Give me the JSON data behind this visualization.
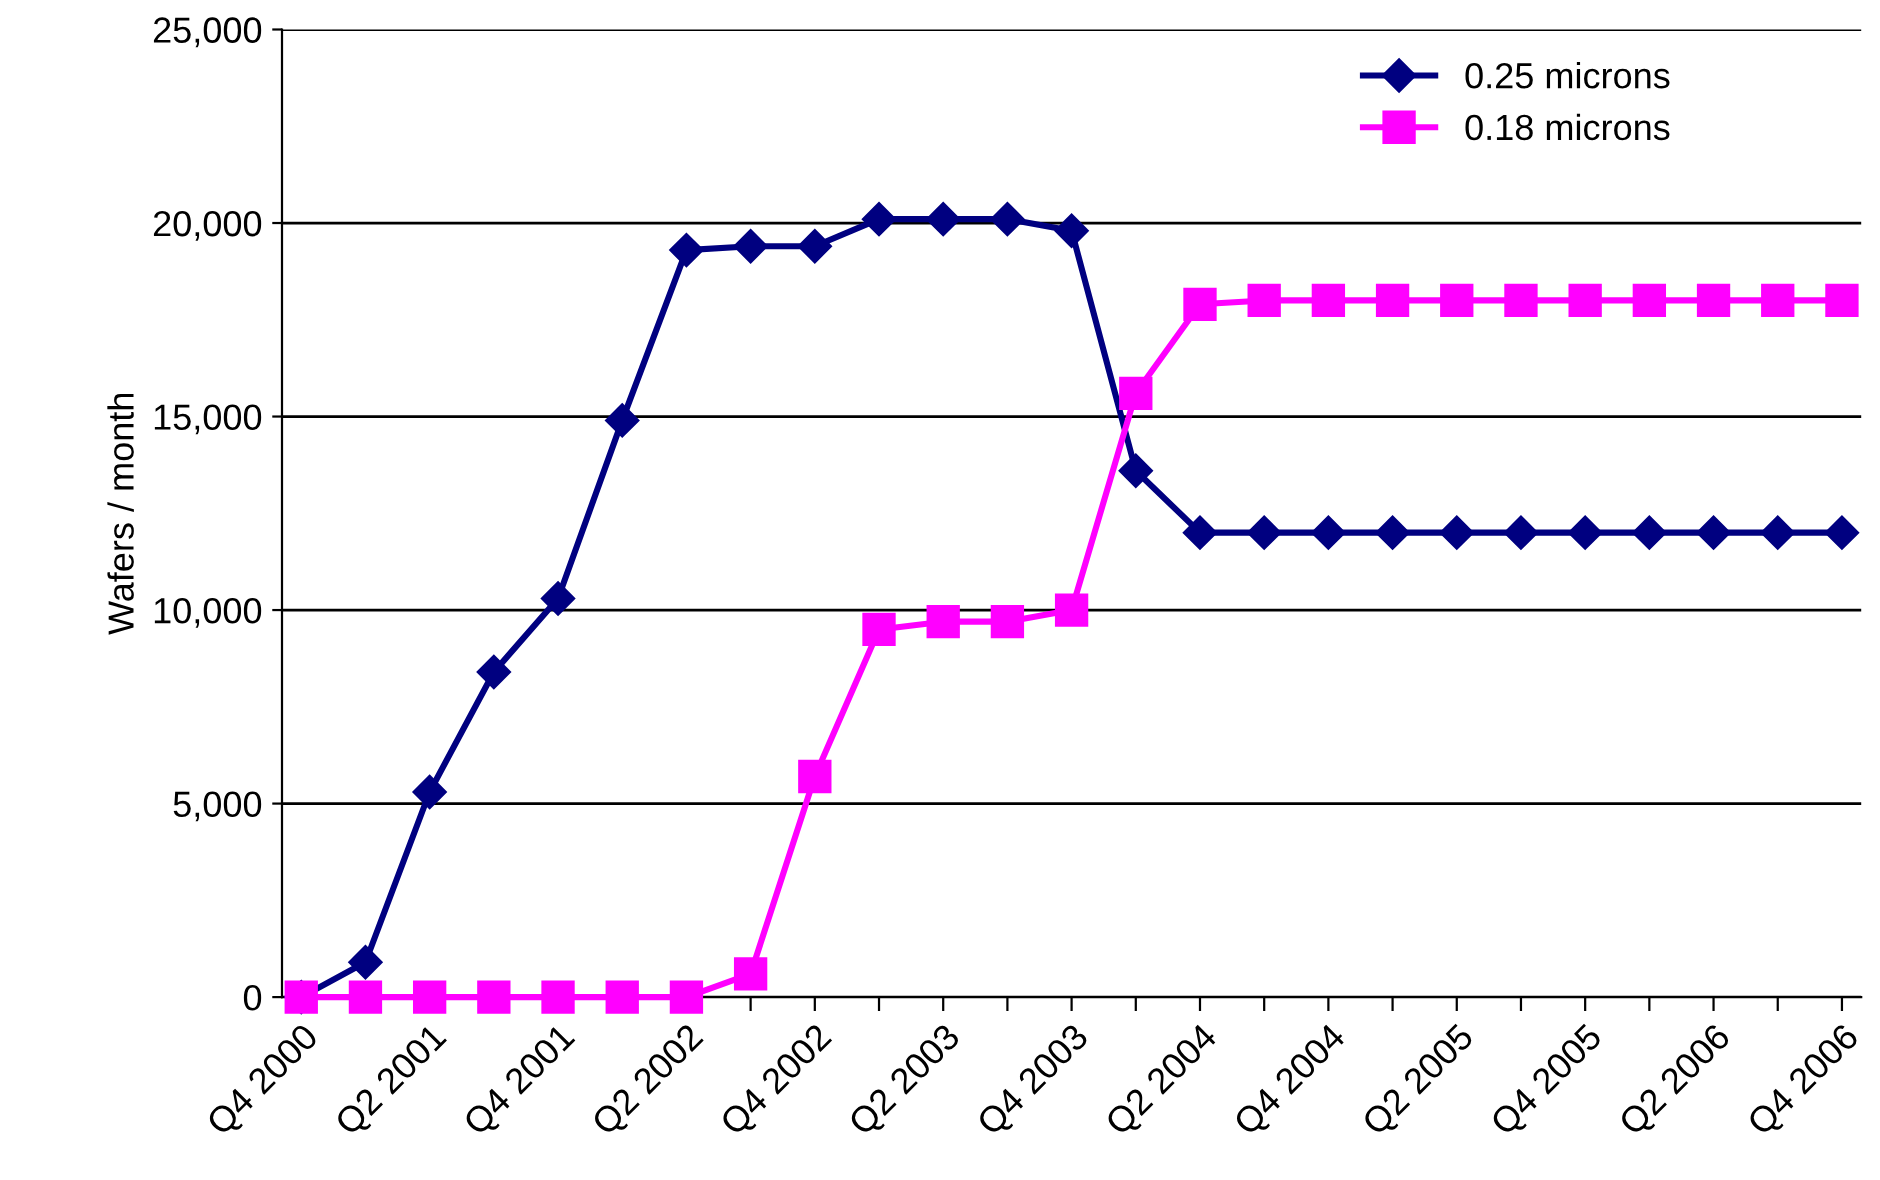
{
  "chart_data": {
    "type": "line",
    "ylabel": "Wafers / month",
    "categories": [
      "Q4 2000",
      null,
      "Q2 2001",
      null,
      "Q4 2001",
      null,
      "Q2 2002",
      null,
      "Q4 2002",
      null,
      "Q2 2003",
      null,
      "Q4 2003",
      null,
      "Q2 2004",
      null,
      "Q4 2004",
      null,
      "Q2 2005",
      null,
      "Q4 2005",
      null,
      "Q2 2006",
      null,
      "Q4 2006"
    ],
    "series": [
      {
        "name": "0.25 microns",
        "color": "#000080",
        "marker": "diamond",
        "values": [
          0,
          900,
          5300,
          8400,
          10300,
          14900,
          19300,
          19400,
          19400,
          20100,
          20100,
          20100,
          19800,
          13600,
          12000,
          12000,
          12000,
          12000,
          12000,
          12000,
          12000,
          12000,
          12000,
          12000,
          12000
        ]
      },
      {
        "name": "0.18 microns",
        "color": "#ff00ff",
        "marker": "square",
        "values": [
          0,
          0,
          0,
          0,
          0,
          0,
          0,
          600,
          5700,
          9500,
          9700,
          9700,
          10000,
          15600,
          17900,
          18000,
          18000,
          18000,
          18000,
          18000,
          18000,
          18000,
          18000,
          18000,
          18000
        ]
      }
    ],
    "ylim": [
      0,
      25000
    ],
    "yticks": [
      {
        "value": 0,
        "label": "0"
      },
      {
        "value": 5000,
        "label": "5,000"
      },
      {
        "value": 10000,
        "label": "10,000"
      },
      {
        "value": 15000,
        "label": "15,000"
      },
      {
        "value": 20000,
        "label": "20,000"
      },
      {
        "value": 25000,
        "label": "25,000"
      }
    ],
    "grid": "y",
    "legend": "top right",
    "line_style": "solid"
  }
}
